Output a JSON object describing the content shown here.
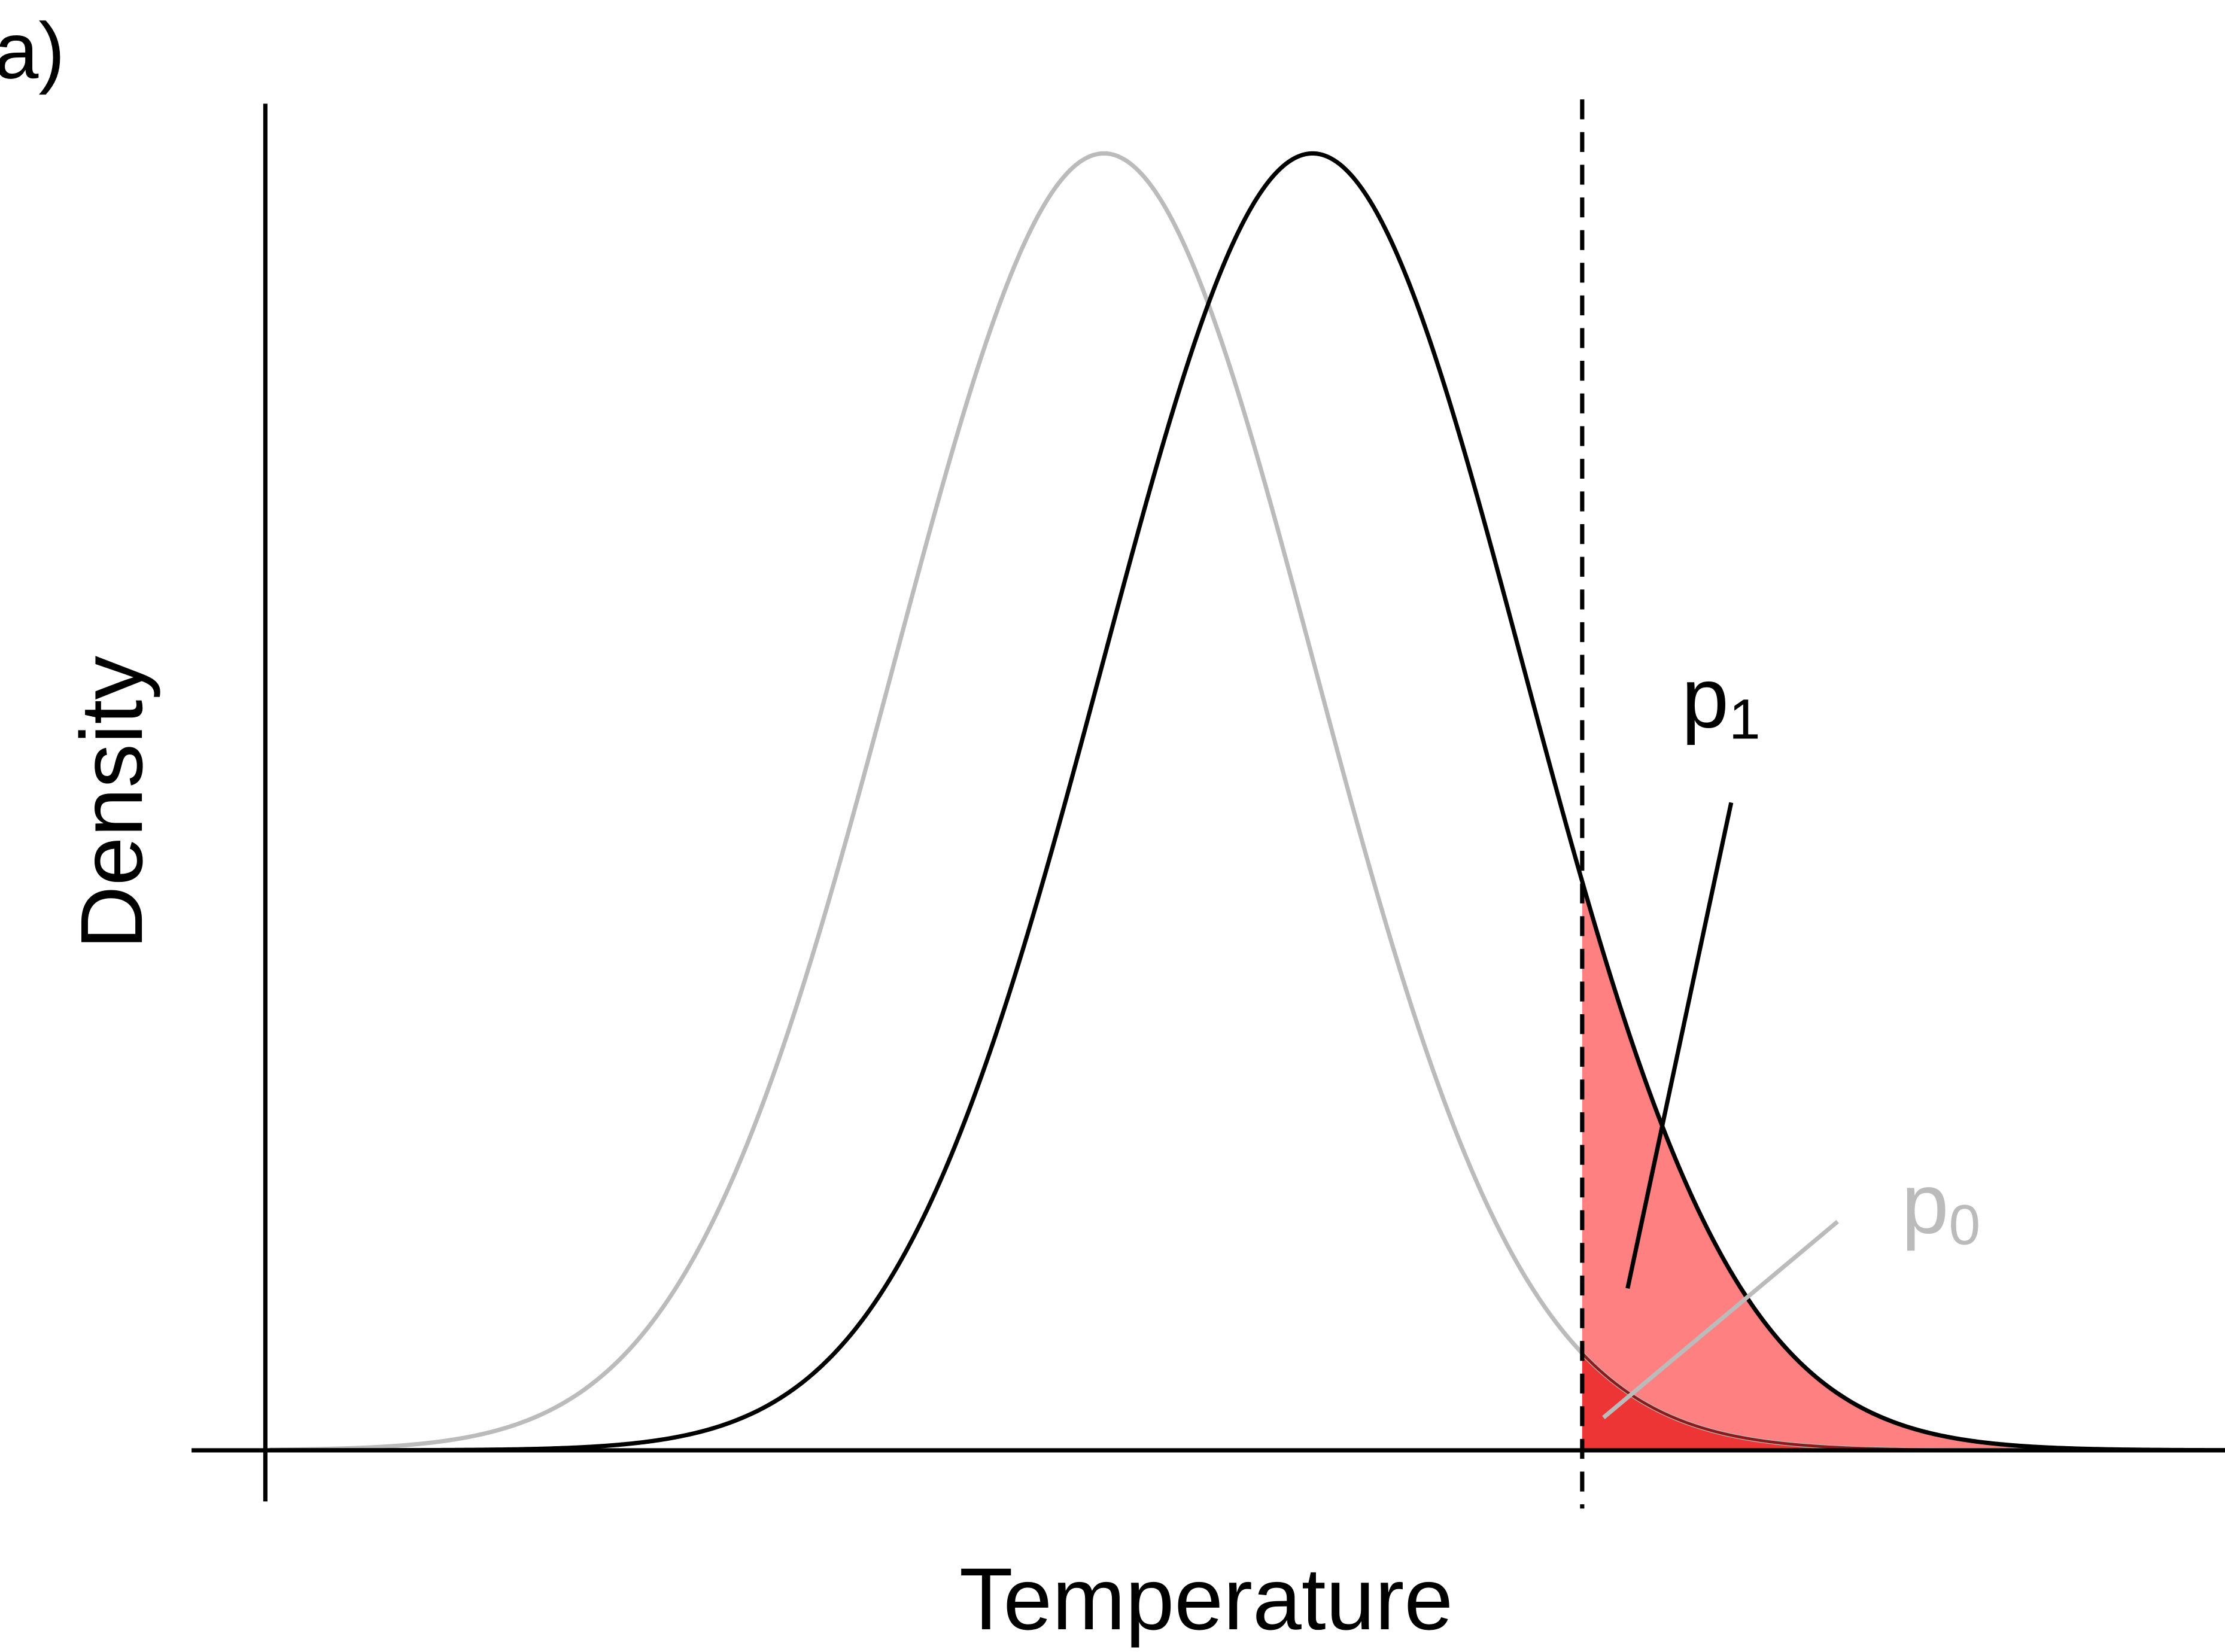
{
  "panel_label": "a)",
  "y_axis_label": "Density",
  "x_axis_label": "Temperature",
  "annotations": [
    {
      "base": "p",
      "subscript": "1"
    },
    {
      "base": "p",
      "subscript": "0"
    }
  ]
}
